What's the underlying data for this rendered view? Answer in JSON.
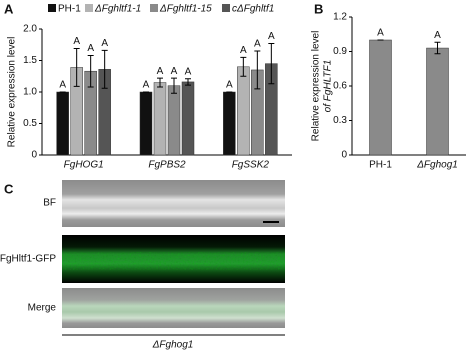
{
  "chart_data": [
    {
      "type": "bar",
      "ylabel": "Relative expression level",
      "categories": [
        "FgHOG1",
        "FgPBS2",
        "FgSSK2"
      ],
      "series": [
        {
          "name": "PH-1",
          "color": "#111111",
          "values": [
            1.0,
            1.0,
            1.0
          ],
          "errors": [
            0,
            0,
            0
          ],
          "letters": [
            "A",
            "A",
            "A"
          ]
        },
        {
          "name": "ΔFghltf1-1",
          "color": "#b3b3b3",
          "values": [
            1.39,
            1.15,
            1.4
          ],
          "errors": [
            0.3,
            0.07,
            0.15
          ],
          "letters": [
            "A",
            "A",
            "A"
          ]
        },
        {
          "name": "ΔFghltf1-15",
          "color": "#8a8a8a",
          "values": [
            1.33,
            1.1,
            1.35
          ],
          "errors": [
            0.25,
            0.12,
            0.3
          ],
          "letters": [
            "A",
            "A",
            "A"
          ]
        },
        {
          "name": "cΔFghltf1",
          "color": "#555555",
          "values": [
            1.36,
            1.16,
            1.45
          ],
          "errors": [
            0.3,
            0.05,
            0.32
          ],
          "letters": [
            "A",
            "A",
            "A"
          ]
        }
      ],
      "ylim": [
        0,
        2
      ],
      "yticks": [
        0,
        0.5,
        {
          "value": 1,
          "label": "1.0"
        },
        1.5,
        {
          "value": 2,
          "label": "2.0"
        }
      ]
    },
    {
      "type": "bar",
      "ylabel": [
        "Relative expression level",
        "of FgHLTF1"
      ],
      "categories": [
        "PH-1",
        "ΔFghog1"
      ],
      "series": [
        {
          "color": "#8a8a8a",
          "values": [
            1.0,
            0.93
          ],
          "errors": [
            0,
            0.05
          ],
          "letters": [
            "A",
            "A"
          ]
        }
      ],
      "ylim": [
        0,
        1.2
      ],
      "yticks": [
        0,
        0.3,
        0.6,
        0.9,
        1.2
      ]
    }
  ],
  "panel_labels": [
    "A",
    "B",
    "C"
  ],
  "images": {
    "labels": [
      "BF",
      "FgHltf1-GFP",
      "Merge"
    ],
    "strain": "ΔFghog1"
  }
}
